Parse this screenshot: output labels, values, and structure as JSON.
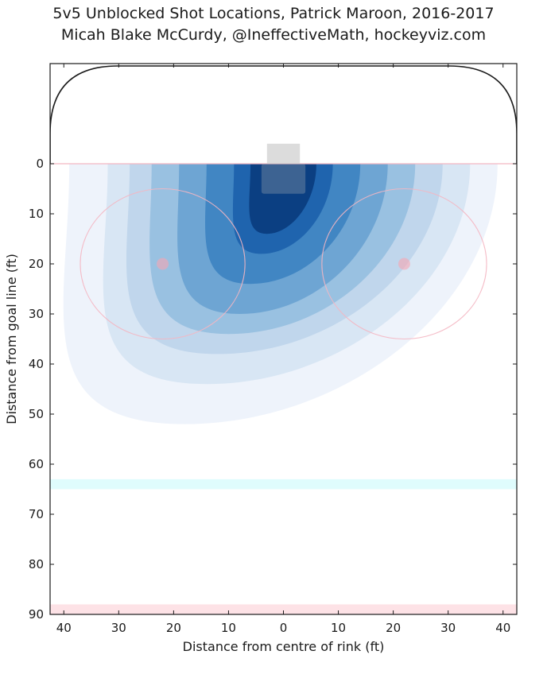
{
  "chart_data": {
    "type": "heatmap",
    "title": "5v5 Unblocked Shot Locations, Patrick Maroon, 2016-2017",
    "subtitle": "Micah Blake McCurdy, @IneffectiveMath, hockeyviz.com",
    "xlabel": "Distance from centre of rink (ft)",
    "ylabel": "Distance from goal line (ft)",
    "xlim": [
      -42.5,
      42.5
    ],
    "ylim": [
      -20,
      90
    ],
    "x_ticks": [
      -40,
      -30,
      -20,
      -10,
      0,
      10,
      20,
      30,
      40
    ],
    "x_tick_labels": [
      "40",
      "30",
      "20",
      "10",
      "0",
      "10",
      "20",
      "30",
      "40"
    ],
    "y_ticks": [
      0,
      10,
      20,
      30,
      40,
      50,
      60,
      70,
      80,
      90
    ],
    "y_tick_labels": [
      "0",
      "10",
      "20",
      "30",
      "40",
      "50",
      "60",
      "70",
      "80",
      "90"
    ],
    "contour_levels": [
      {
        "level": 1,
        "color": "#eef3fb",
        "x_range": [
          -39,
          39
        ],
        "y_max": 52,
        "x_at_ymax": -18
      },
      {
        "level": 2,
        "color": "#d8e6f4",
        "x_range": [
          -32,
          34
        ],
        "y_max": 44,
        "x_at_ymax": -14
      },
      {
        "level": 3,
        "color": "#c0d6ec",
        "x_range": [
          -28,
          29
        ],
        "y_max": 38,
        "x_at_ymax": -12
      },
      {
        "level": 4,
        "color": "#99c1e1",
        "x_range": [
          -24,
          24
        ],
        "y_max": 34,
        "x_at_ymax": -10
      },
      {
        "level": 5,
        "color": "#6ea5d3",
        "x_range": [
          -19,
          19
        ],
        "y_max": 30,
        "x_at_ymax": -8
      },
      {
        "level": 6,
        "color": "#4186c3",
        "x_range": [
          -14,
          14
        ],
        "y_max": 24,
        "x_at_ymax": -6
      },
      {
        "level": 7,
        "color": "#1f64ae",
        "x_range": [
          -9,
          9
        ],
        "y_max": 18,
        "x_at_ymax": -4
      },
      {
        "level": 8,
        "color": "#0b3f82",
        "x_range": [
          -6,
          6
        ],
        "y_max": 14,
        "x_at_ymax": -3
      }
    ],
    "rink": {
      "goal_line_y": 0,
      "faceoff_dots": [
        [
          -22,
          20
        ],
        [
          22,
          20
        ]
      ],
      "faceoff_circle_radius": 15,
      "blue_line_y": [
        63,
        65
      ],
      "red_line_y": [
        88,
        90
      ],
      "net": {
        "x": [
          -3,
          3
        ],
        "y": [
          -4,
          0
        ]
      },
      "crease": {
        "x": [
          -4,
          4
        ],
        "y": [
          0,
          6
        ]
      }
    },
    "grid": false,
    "legend": "none"
  }
}
